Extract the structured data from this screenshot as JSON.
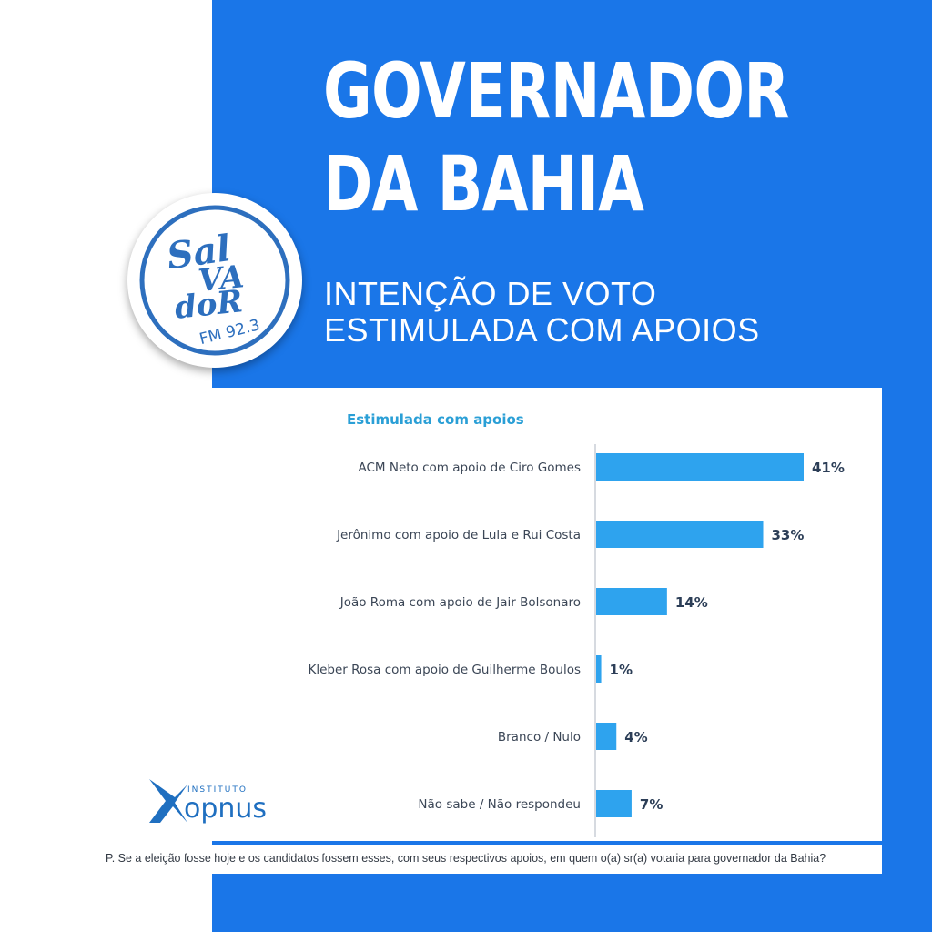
{
  "colors": {
    "panel_blue": "#1a76e8",
    "bar_blue": "#2ea3ee",
    "label_dark": "#3b4656",
    "value_dark": "#2c3e57",
    "subtitle_teal": "#2a9fd6",
    "logo_blue": "#2d6fbe",
    "opnus_blue": "#1f6fc0"
  },
  "header": {
    "title_line1": "GOVERNADOR",
    "title_line2": "DA BAHIA",
    "subtitle_line1": "INTENÇÃO DE VOTO",
    "subtitle_line2": "ESTIMULADA COM APOIOS"
  },
  "logo": {
    "line1": "Sal",
    "line2": "VA",
    "line3": "doR",
    "line4": "FM 92.3"
  },
  "institute": {
    "small": "INSTITUTO",
    "name": "opnus"
  },
  "question": "P. Se a eleição fosse hoje e os candidatos fossem esses, com seus respectivos apoios, em quem o(a) sr(a) votaria para governador da Bahia?",
  "chart_data": {
    "type": "bar",
    "orientation": "horizontal",
    "title": "Estimulada com apoios",
    "categories": [
      "ACM Neto com apoio de Ciro Gomes",
      "Jerônimo com apoio de Lula e Rui Costa",
      "João Roma com apoio de Jair Bolsonaro",
      "Kleber Rosa com apoio de Guilherme Boulos",
      "Branco / Nulo",
      "Não sabe / Não respondeu"
    ],
    "values": [
      41,
      33,
      14,
      1,
      4,
      7
    ],
    "value_labels": [
      "41%",
      "33%",
      "14%",
      "1%",
      "4%",
      "7%"
    ],
    "unit": "%",
    "xlim": [
      0,
      41
    ],
    "grid": false,
    "legend": "none"
  }
}
